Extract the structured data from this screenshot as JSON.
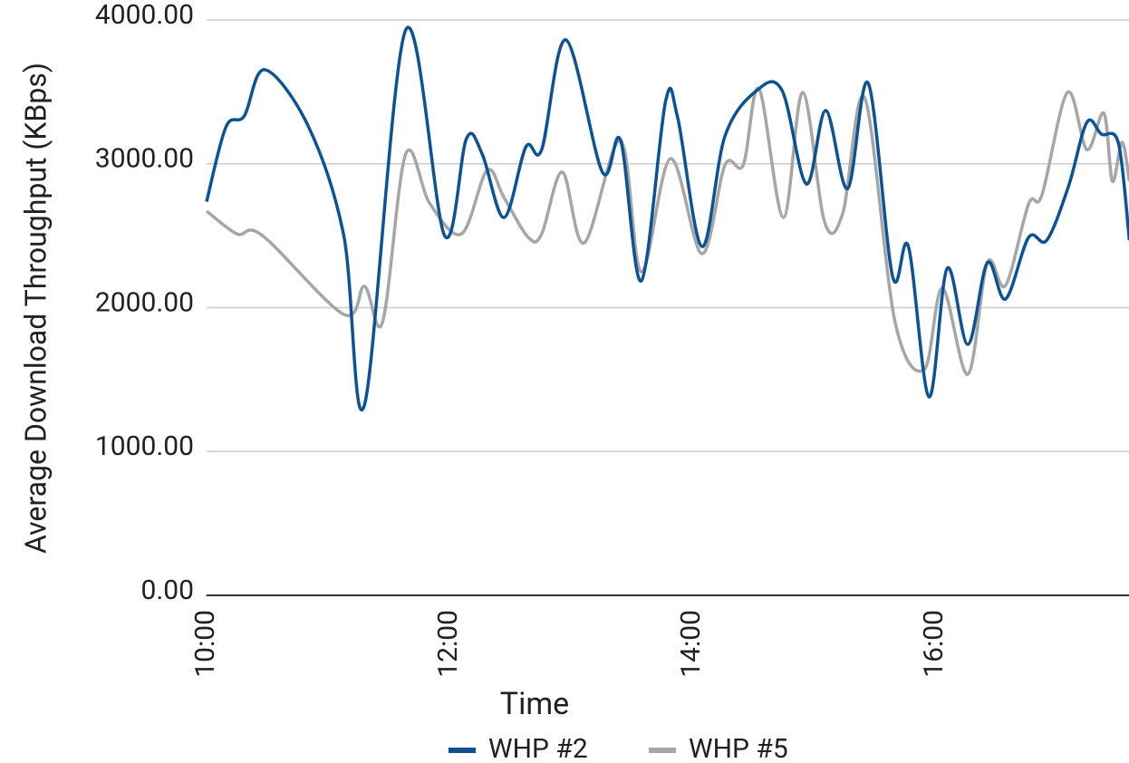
{
  "chart_data": {
    "type": "line",
    "x_label": "Time",
    "y_label": "Average Download Throughput (KBps)",
    "xlim": [
      10,
      17.6
    ],
    "xticks": [
      {
        "value": 10,
        "label": "10:00"
      },
      {
        "value": 12,
        "label": "12:00"
      },
      {
        "value": 14,
        "label": "14:00"
      },
      {
        "value": 16,
        "label": "16:00"
      }
    ],
    "ylim": [
      0,
      4000
    ],
    "yticks": [
      {
        "value": 0,
        "label": "0.00"
      },
      {
        "value": 1000,
        "label": "1000.00"
      },
      {
        "value": 2000,
        "label": "2000.00"
      },
      {
        "value": 3000,
        "label": "3000.00"
      },
      {
        "value": 4000,
        "label": "4000.00"
      }
    ],
    "grid": true,
    "legend": "bottom",
    "series": [
      {
        "name": "WHP #2",
        "color": "#0b5394",
        "x": [
          10.0,
          10.16,
          10.31,
          10.48,
          10.84,
          11.13,
          11.3,
          11.64,
          11.96,
          12.14,
          12.27,
          12.45,
          12.63,
          12.76,
          12.96,
          13.26,
          13.41,
          13.58,
          13.78,
          13.88,
          14.08,
          14.27,
          14.53,
          14.74,
          14.94,
          15.1,
          15.28,
          15.45,
          15.65,
          15.78,
          15.95,
          16.1,
          16.27,
          16.43,
          16.58,
          16.77,
          16.92,
          17.1,
          17.25,
          17.37,
          17.51,
          17.6
        ],
        "values": [
          2737,
          3257,
          3332,
          3654,
          3257,
          2501,
          1323,
          3931,
          2501,
          3175,
          3068,
          2627,
          3118,
          3099,
          3861,
          2942,
          3162,
          2186,
          3433,
          3320,
          2425,
          3194,
          3509,
          3509,
          2860,
          3370,
          2828,
          3559,
          2217,
          2425,
          1380,
          2274,
          1745,
          2312,
          2060,
          2488,
          2469,
          2847,
          3288,
          3206,
          3143,
          2469
        ]
      },
      {
        "name": "WHP #5",
        "color": "#a6a6a6",
        "x": [
          10.0,
          10.25,
          10.46,
          11.13,
          11.3,
          11.45,
          11.64,
          11.84,
          12.1,
          12.31,
          12.45,
          12.65,
          12.76,
          12.93,
          13.11,
          13.41,
          13.58,
          13.82,
          14.08,
          14.27,
          14.42,
          14.55,
          14.75,
          14.91,
          15.09,
          15.24,
          15.42,
          15.67,
          15.91,
          16.06,
          16.27,
          16.43,
          16.58,
          16.77,
          16.88,
          17.09,
          17.25,
          17.39,
          17.46,
          17.54,
          17.6
        ],
        "values": [
          2671,
          2513,
          2501,
          1953,
          2148,
          1902,
          3068,
          2721,
          2513,
          2954,
          2765,
          2488,
          2513,
          2942,
          2450,
          3162,
          2249,
          3036,
          2375,
          2992,
          2992,
          3521,
          2627,
          3496,
          2595,
          2658,
          3458,
          1902,
          1569,
          2135,
          1537,
          2312,
          2154,
          2721,
          2784,
          3496,
          3099,
          3351,
          2879,
          3150,
          2879
        ]
      }
    ]
  }
}
